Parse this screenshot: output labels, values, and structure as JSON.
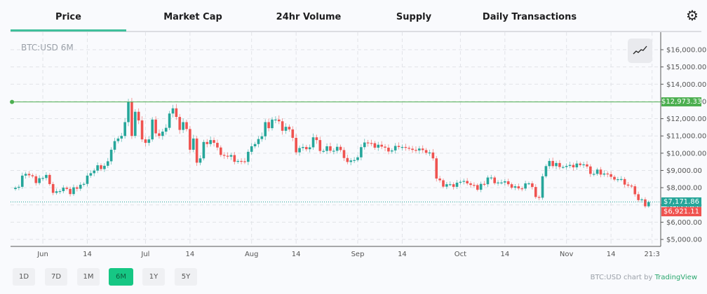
{
  "tabs": [
    "Price",
    "Market Cap",
    "24hr Volume",
    "Supply",
    "Daily Transactions"
  ],
  "active_tab": "Price",
  "settings_icon": "gear-icon",
  "symbol_label": "BTC:USD 6M",
  "chart_type_icon": "line-chart-icon",
  "ranges": [
    "1D",
    "7D",
    "1M",
    "6M",
    "1Y",
    "5Y"
  ],
  "active_range": "6M",
  "attribution": {
    "prefix": "BTC:USD chart by ",
    "brand": "TradingView"
  },
  "colors": {
    "up": "#26a69a",
    "down": "#ef5350",
    "high_line": "#4caf50",
    "accent": "#16c784"
  },
  "chart_data": {
    "type": "candlestick",
    "title": "BTC:USD 6M",
    "start_date": "2019-05-24",
    "interval": "1 day",
    "close": [
      8000,
      8050,
      8700,
      8800,
      8720,
      8660,
      8270,
      8550,
      8560,
      8740,
      8210,
      7700,
      7790,
      7800,
      8000,
      7930,
      7630,
      8020,
      7940,
      8170,
      8220,
      8700,
      8840,
      8990,
      9300,
      9080,
      9270,
      9530,
      10200,
      10700,
      10850,
      11000,
      11800,
      12973,
      11000,
      12400,
      11900,
      10800,
      10600,
      10800,
      11950,
      11150,
      11000,
      11250,
      11470,
      12300,
      12600,
      12100,
      11350,
      11800,
      11400,
      10200,
      10850,
      9450,
      9700,
      10650,
      10530,
      10760,
      10600,
      10330,
      9900,
      9850,
      9800,
      9890,
      9500,
      9550,
      9530,
      9500,
      10080,
      10400,
      10530,
      10820,
      10980,
      11800,
      11450,
      11950,
      11950,
      11850,
      11300,
      11530,
      11380,
      10890,
      10050,
      10300,
      10360,
      10230,
      10340,
      10920,
      10760,
      10130,
      10130,
      10400,
      10140,
      10140,
      10370,
      10180,
      9720,
      9490,
      9580,
      9600,
      9760,
      10350,
      10620,
      10590,
      10580,
      10320,
      10490,
      10380,
      10320,
      10100,
      10160,
      10420,
      10360,
      10360,
      10310,
      10260,
      10190,
      10160,
      10270,
      10180,
      10020,
      10040,
      9700,
      8530,
      8430,
      8060,
      8200,
      8200,
      8050,
      8290,
      8340,
      8390,
      8250,
      8160,
      8150,
      7880,
      8220,
      8200,
      8590,
      8590,
      8260,
      8300,
      8300,
      8370,
      8200,
      8000,
      8080,
      7960,
      7950,
      8250,
      8250,
      8040,
      7460,
      7420,
      8660,
      9250,
      9550,
      9250,
      9430,
      9200,
      9200,
      9260,
      9320,
      9180,
      9400,
      9310,
      9350,
      9230,
      8800,
      8800,
      9050,
      8760,
      8820,
      8780,
      8630,
      8470,
      8490,
      8500,
      8180,
      8120,
      8080,
      7620,
      7280,
      7320,
      6921.11,
      7171.86
    ],
    "ylim": [
      4700,
      16700
    ],
    "y_ticks": [
      16000,
      15000,
      14000,
      13000,
      12000,
      11000,
      10000,
      9000,
      8000,
      7000,
      6000,
      5000
    ],
    "y_tick_labels": [
      "$16,000.00",
      "$15,000.00",
      "$14,000.00",
      "$13,000.00",
      "$12,000.00",
      "$11,000.00",
      "$10,000.00",
      "$9,000.00",
      "$8,000.00",
      "$7,000.00",
      "$6,000.00",
      "$5,000.00"
    ],
    "x_ticks": [
      {
        "label": "Jun",
        "date": "2019-06-01"
      },
      {
        "label": "14",
        "date": "2019-06-14"
      },
      {
        "label": "Jul",
        "date": "2019-07-01"
      },
      {
        "label": "14",
        "date": "2019-07-14"
      },
      {
        "label": "Aug",
        "date": "2019-08-01"
      },
      {
        "label": "14",
        "date": "2019-08-14"
      },
      {
        "label": "Sep",
        "date": "2019-09-01"
      },
      {
        "label": "14",
        "date": "2019-09-14"
      },
      {
        "label": "Oct",
        "date": "2019-10-01"
      },
      {
        "label": "14",
        "date": "2019-10-14"
      },
      {
        "label": "Nov",
        "date": "2019-11-01"
      },
      {
        "label": "14",
        "date": "2019-11-14"
      },
      {
        "label": "21:3",
        "date": "2019-11-26"
      }
    ],
    "grid": true,
    "high_line": {
      "value": 12973.33,
      "label": "$12,973.33"
    },
    "last_price": {
      "value": 7171.86,
      "label": "$7,171.86"
    },
    "prev_close": {
      "value": 6921.11,
      "label": "$6,921.11"
    }
  }
}
